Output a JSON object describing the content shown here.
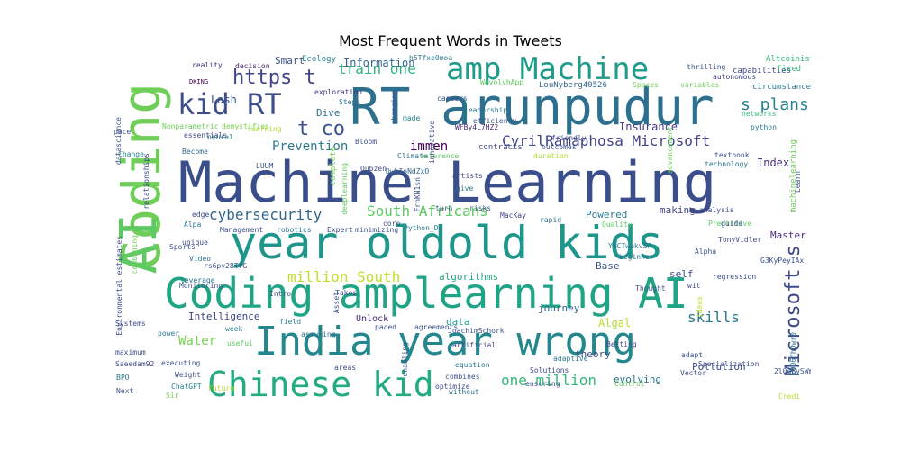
{
  "title": "Most Frequent Words in Tweets",
  "words": [
    {
      "text": "Machine Learning",
      "color": "#3b4e8c"
    },
    {
      "text": "RT arunpudur",
      "color": "#2c6f8e"
    },
    {
      "text": "year oldold kids",
      "color": "#1f968b"
    },
    {
      "text": "Coding amplearning AI",
      "color": "#20a486"
    },
    {
      "text": "India year wrong",
      "color": "#24878e"
    },
    {
      "text": "Chinese kid",
      "color": "#25ab82"
    },
    {
      "text": "amp Machine",
      "color": "#1e9c89"
    },
    {
      "text": "kid RT",
      "color": "#3d4e8a"
    },
    {
      "text": "https t",
      "color": "#404588"
    },
    {
      "text": "t co",
      "color": "#3b528b"
    },
    {
      "text": "train one",
      "color": "#2db27d"
    },
    {
      "text": "s plans",
      "color": "#26828e"
    },
    {
      "text": "CyrilRamaphosa Microsoft",
      "color": "#414487"
    },
    {
      "text": "immen",
      "color": "#440154"
    },
    {
      "text": "Prevention",
      "color": "#2a788e"
    },
    {
      "text": "cybersecurity",
      "color": "#31688e"
    },
    {
      "text": "South Africans",
      "color": "#5ec962"
    },
    {
      "text": "million South",
      "color": "#bddf26"
    },
    {
      "text": "one million",
      "color": "#35b779"
    },
    {
      "text": "skills",
      "color": "#2a788e"
    },
    {
      "text": "Water",
      "color": "#7ad151"
    },
    {
      "text": "Microsoft s",
      "color": "#3e4989"
    },
    {
      "text": "Coding",
      "color": "#6ece58"
    },
    {
      "text": "AI",
      "color": "#5ec962"
    },
    {
      "text": "Information",
      "color": "#31688e"
    },
    {
      "text": "Insurance",
      "color": "#443983"
    },
    {
      "text": "Index",
      "color": "#46327e"
    },
    {
      "text": "Lash",
      "color": "#3b528b"
    },
    {
      "text": "Dive",
      "color": "#2c728e"
    },
    {
      "text": "Smart",
      "color": "#3b528b"
    },
    {
      "text": "making",
      "color": "#414487"
    },
    {
      "text": "Powered",
      "color": "#2a788e"
    },
    {
      "text": "Master",
      "color": "#46307e"
    },
    {
      "text": "self",
      "color": "#3e4989"
    },
    {
      "text": "journey",
      "color": "#31688e"
    },
    {
      "text": "algorithms",
      "color": "#22a884"
    },
    {
      "text": "Base",
      "color": "#3b528b"
    },
    {
      "text": "Intelligence",
      "color": "#414487"
    },
    {
      "text": "evolving",
      "color": "#2c728e"
    },
    {
      "text": "Algal",
      "color": "#b5de2b"
    },
    {
      "text": "theory",
      "color": "#3b528b"
    },
    {
      "text": "Pollution",
      "color": "#3e4989"
    },
    {
      "text": "data",
      "color": "#1fa188"
    },
    {
      "text": "Unlock",
      "color": "#482475"
    },
    {
      "text": "Altcoinist_com",
      "color": "#35b779"
    },
    {
      "text": "Ecology",
      "color": "#26828e"
    },
    {
      "text": "h5Tfxe0moa",
      "color": "#2a788e"
    },
    {
      "text": "WevolvhApp",
      "color": "#5ec962"
    },
    {
      "text": "LouNyberg40526",
      "color": "#31688e"
    },
    {
      "text": "Spaces",
      "color": "#6ece58"
    },
    {
      "text": "capabilities",
      "color": "#3e4989"
    },
    {
      "text": "fixed",
      "color": "#35b779"
    },
    {
      "text": "circumstances",
      "color": "#2a788e"
    },
    {
      "text": "variables",
      "color": "#6ece58"
    },
    {
      "text": "autonomous",
      "color": "#414487"
    },
    {
      "text": "thrilling",
      "color": "#3b528b"
    },
    {
      "text": "reality",
      "color": "#46327e"
    },
    {
      "text": "decision",
      "color": "#482475"
    },
    {
      "text": "DKING",
      "color": "#440154"
    },
    {
      "text": "datascience",
      "color": "#3b528b"
    },
    {
      "text": "exploration",
      "color": "#46327e"
    },
    {
      "text": "Steps",
      "color": "#2c728e"
    },
    {
      "text": "careers",
      "color": "#3b528b"
    },
    {
      "text": "made",
      "color": "#26828e"
    },
    {
      "text": "efficiency",
      "color": "#3b528b"
    },
    {
      "text": "Leadership",
      "color": "#2c728e"
    },
    {
      "text": "WFBy4L7HZ2",
      "color": "#482878"
    },
    {
      "text": "networks",
      "color": "#35b779"
    },
    {
      "text": "python",
      "color": "#2a788e"
    },
    {
      "text": "pace",
      "color": "#3b528b"
    },
    {
      "text": "Nonparametric",
      "color": "#6ece58"
    },
    {
      "text": "essentials",
      "color": "#3e4989"
    },
    {
      "text": "learning",
      "color": "#b5de2b"
    },
    {
      "text": "demystifies",
      "color": "#7ad151"
    },
    {
      "text": "neural",
      "color": "#2a788e"
    },
    {
      "text": "Become",
      "color": "#31688e"
    },
    {
      "text": "Change",
      "color": "#26828e"
    },
    {
      "text": "relationships",
      "color": "#3e4989"
    },
    {
      "text": "Climate",
      "color": "#2c728e"
    },
    {
      "text": "inference",
      "color": "#5ec962"
    },
    {
      "text": "contracts",
      "color": "#3e4989"
    },
    {
      "text": "outcomes",
      "color": "#3b528b"
    },
    {
      "text": "duration",
      "color": "#b5de2b"
    },
    {
      "text": "friendly",
      "color": "#3e4989"
    },
    {
      "text": "textbook",
      "color": "#3b528b"
    },
    {
      "text": "technology",
      "color": "#2c728e"
    },
    {
      "text": "machinelearning",
      "color": "#6ece58"
    },
    {
      "text": "advancement",
      "color": "#6ece58"
    },
    {
      "text": "Qubzen",
      "color": "#3e4989"
    },
    {
      "text": "DwhIoNdZxO",
      "color": "#31688e"
    },
    {
      "text": "LUUM",
      "color": "#3b528b"
    },
    {
      "text": "deeplearning",
      "color": "#5ec962"
    },
    {
      "text": "artists",
      "color": "#3e4989"
    },
    {
      "text": "FrnKN1sn",
      "color": "#3b528b"
    },
    {
      "text": "give",
      "color": "#2a788e"
    },
    {
      "text": "turn",
      "color": "#3b528b"
    },
    {
      "text": "risks",
      "color": "#3b528b"
    },
    {
      "text": "MacKay",
      "color": "#414487"
    },
    {
      "text": "rapid",
      "color": "#2c728e"
    },
    {
      "text": "Quality",
      "color": "#5ec962"
    },
    {
      "text": "Predictive",
      "color": "#5ec962"
    },
    {
      "text": "analysis",
      "color": "#3e4989"
    },
    {
      "text": "guide",
      "color": "#3b528b"
    },
    {
      "text": "edge",
      "color": "#3e4989"
    },
    {
      "text": "Alpa",
      "color": "#2a788e"
    },
    {
      "text": "Environmental estimates",
      "color": "#3e4989"
    },
    {
      "text": "Management",
      "color": "#3b528b"
    },
    {
      "text": "robotics",
      "color": "#2c728e"
    },
    {
      "text": "Expert",
      "color": "#3e4989"
    },
    {
      "text": "minimizing",
      "color": "#3b528b"
    },
    {
      "text": "core",
      "color": "#3b528b"
    },
    {
      "text": "Python_Dv",
      "color": "#2a788e"
    },
    {
      "text": "unique",
      "color": "#3e4989"
    },
    {
      "text": "Sports",
      "color": "#3b528b"
    },
    {
      "text": "Video",
      "color": "#2c728e"
    },
    {
      "text": "rs6pv28TfG",
      "color": "#3b528b"
    },
    {
      "text": "leverage",
      "color": "#2c728e"
    },
    {
      "text": "combining",
      "color": "#6ece58"
    },
    {
      "text": "Monitoring",
      "color": "#3b528b"
    },
    {
      "text": "Intro",
      "color": "#3e4989"
    },
    {
      "text": "Takes",
      "color": "#3e4989"
    },
    {
      "text": "YNCTwukvSF",
      "color": "#2a788e"
    },
    {
      "text": "TonyVidler",
      "color": "#3e4989"
    },
    {
      "text": "Alpha",
      "color": "#3b528b"
    },
    {
      "text": "G3KyPeyIAx",
      "color": "#3b528b"
    },
    {
      "text": "beginner",
      "color": "#2a788e"
    },
    {
      "text": "regression",
      "color": "#3e4989"
    },
    {
      "text": "Learn",
      "color": "#3b528b"
    },
    {
      "text": "wit",
      "color": "#3e4989"
    },
    {
      "text": "Thought",
      "color": "#3b528b"
    },
    {
      "text": "ideas",
      "color": "#b5de2b"
    },
    {
      "text": "Systems",
      "color": "#3e4989"
    },
    {
      "text": "Asset",
      "color": "#3b528b"
    },
    {
      "text": "field",
      "color": "#2a788e"
    },
    {
      "text": "assuming",
      "color": "#2c728e"
    },
    {
      "text": "paced",
      "color": "#3e4989"
    },
    {
      "text": "agreements",
      "color": "#3b528b"
    },
    {
      "text": "JoachimSchork",
      "color": "#3b528b"
    },
    {
      "text": "artificial",
      "color": "#3e4989"
    },
    {
      "text": "power",
      "color": "#2c728e"
    },
    {
      "text": "week",
      "color": "#2a788e"
    },
    {
      "text": "useful",
      "color": "#5ec962"
    },
    {
      "text": "maximum",
      "color": "#3e4989"
    },
    {
      "text": "executing",
      "color": "#3b528b"
    },
    {
      "text": "Saeedam92",
      "color": "#3e4989"
    },
    {
      "text": "Weight",
      "color": "#3b528b"
    },
    {
      "text": "BPO",
      "color": "#2a788e"
    },
    {
      "text": "ChatGPT",
      "color": "#26828e"
    },
    {
      "text": "Next",
      "color": "#3b528b"
    },
    {
      "text": "Sir",
      "color": "#7ad151"
    },
    {
      "text": "Future",
      "color": "#b5de2b"
    },
    {
      "text": "areas",
      "color": "#3e4989"
    },
    {
      "text": "enabling",
      "color": "#3b528b"
    },
    {
      "text": "equation",
      "color": "#2a788e"
    },
    {
      "text": "combines",
      "color": "#3b528b"
    },
    {
      "text": "optimize",
      "color": "#3e4989"
    },
    {
      "text": "without",
      "color": "#2c728e"
    },
    {
      "text": "Solutions",
      "color": "#3e4989"
    },
    {
      "text": "adaptive",
      "color": "#2a788e"
    },
    {
      "text": "ensuring",
      "color": "#3b528b"
    },
    {
      "text": "Control",
      "color": "#5ec962"
    },
    {
      "text": "Betting",
      "color": "#3e4989"
    },
    {
      "text": "adapt",
      "color": "#3b528b"
    },
    {
      "text": "Vector",
      "color": "#3b528b"
    },
    {
      "text": "Specialization",
      "color": "#3e4989"
    },
    {
      "text": "2l0eBySWmd",
      "color": "#3b528b"
    },
    {
      "text": "EO06fhOwr0",
      "color": "#2a788e"
    },
    {
      "text": "Credi",
      "color": "#b5de2b"
    },
    {
      "text": "complete",
      "color": "#7ad151"
    },
    {
      "text": "Bloom",
      "color": "#3e4989"
    },
    {
      "text": "changing",
      "color": "#3b528b"
    },
    {
      "text": "innovative",
      "color": "#3e4989"
    }
  ]
}
